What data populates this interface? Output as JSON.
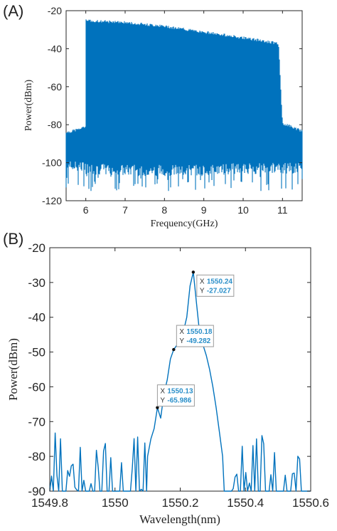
{
  "panel_a_label": "(A)",
  "panel_b_label": "(B)",
  "chart_data": [
    {
      "type": "line",
      "panel": "(A)",
      "title": "",
      "xlabel": "Frequency(GHz)",
      "ylabel": "Power(dBm)",
      "xlim": [
        5.5,
        11.5
      ],
      "ylim": [
        -120,
        -20
      ],
      "xticks": [
        "6",
        "7",
        "8",
        "9",
        "10",
        "11"
      ],
      "yticks": [
        "-20",
        "-40",
        "-60",
        "-80",
        "-100",
        "-120"
      ],
      "grid": false,
      "color": "#0072bd",
      "series": [
        {
          "description_points": {
            "x": [
              5.5,
              6.0,
              6.0,
              7.0,
              8.0,
              9.0,
              10.0,
              10.9,
              11.0,
              11.5
            ],
            "y_top": [
              -85,
              -82,
              -26,
              -27,
              -29,
              -32,
              -35,
              -38,
              -80,
              -84
            ],
            "y_floor": [
              -102,
              -102,
              -103,
              -104,
              -104,
              -104,
              -103,
              -103,
              -103,
              -103
            ]
          },
          "min_value": -115
        }
      ]
    },
    {
      "type": "line",
      "panel": "(B)",
      "title": "",
      "xlabel": "Wavelength(nm)",
      "ylabel": "Power(dBm)",
      "xlim": [
        1549.8,
        1550.6
      ],
      "ylim": [
        -90,
        -20
      ],
      "xticks": [
        "1549.8",
        "1550",
        "1550.2",
        "1550.4",
        "1550.6"
      ],
      "yticks": [
        "-20",
        "-30",
        "-40",
        "-50",
        "-60",
        "-70",
        "-80",
        "-90"
      ],
      "grid": false,
      "color": "#0072bd",
      "series": [
        {
          "x": [
            1549.8,
            1550.05,
            1550.1,
            1550.11,
            1550.12,
            1550.13,
            1550.14,
            1550.15,
            1550.16,
            1550.17,
            1550.18,
            1550.19,
            1550.2,
            1550.21,
            1550.22,
            1550.23,
            1550.24,
            1550.25,
            1550.26,
            1550.27,
            1550.28,
            1550.29,
            1550.3,
            1550.31,
            1550.32,
            1550.33,
            1550.35,
            1550.6
          ],
          "y": [
            -83,
            -82,
            -80,
            -75,
            -72,
            -65.986,
            -69,
            -62,
            -58,
            -52,
            -49.282,
            -48,
            -46,
            -44,
            -40,
            -31,
            -27.027,
            -36,
            -45,
            -48,
            -51,
            -55,
            -60,
            -66,
            -73,
            -80,
            -82,
            -83
          ]
        }
      ],
      "annotations": [
        {
          "x_label": "X",
          "x": "1550.24",
          "y_label": "Y",
          "y": "-27.027"
        },
        {
          "x_label": "X",
          "x": "1550.18",
          "y_label": "Y",
          "y": "-49.282"
        },
        {
          "x_label": "X",
          "x": "1550.13",
          "y_label": "Y",
          "y": "-65.986"
        }
      ]
    }
  ]
}
